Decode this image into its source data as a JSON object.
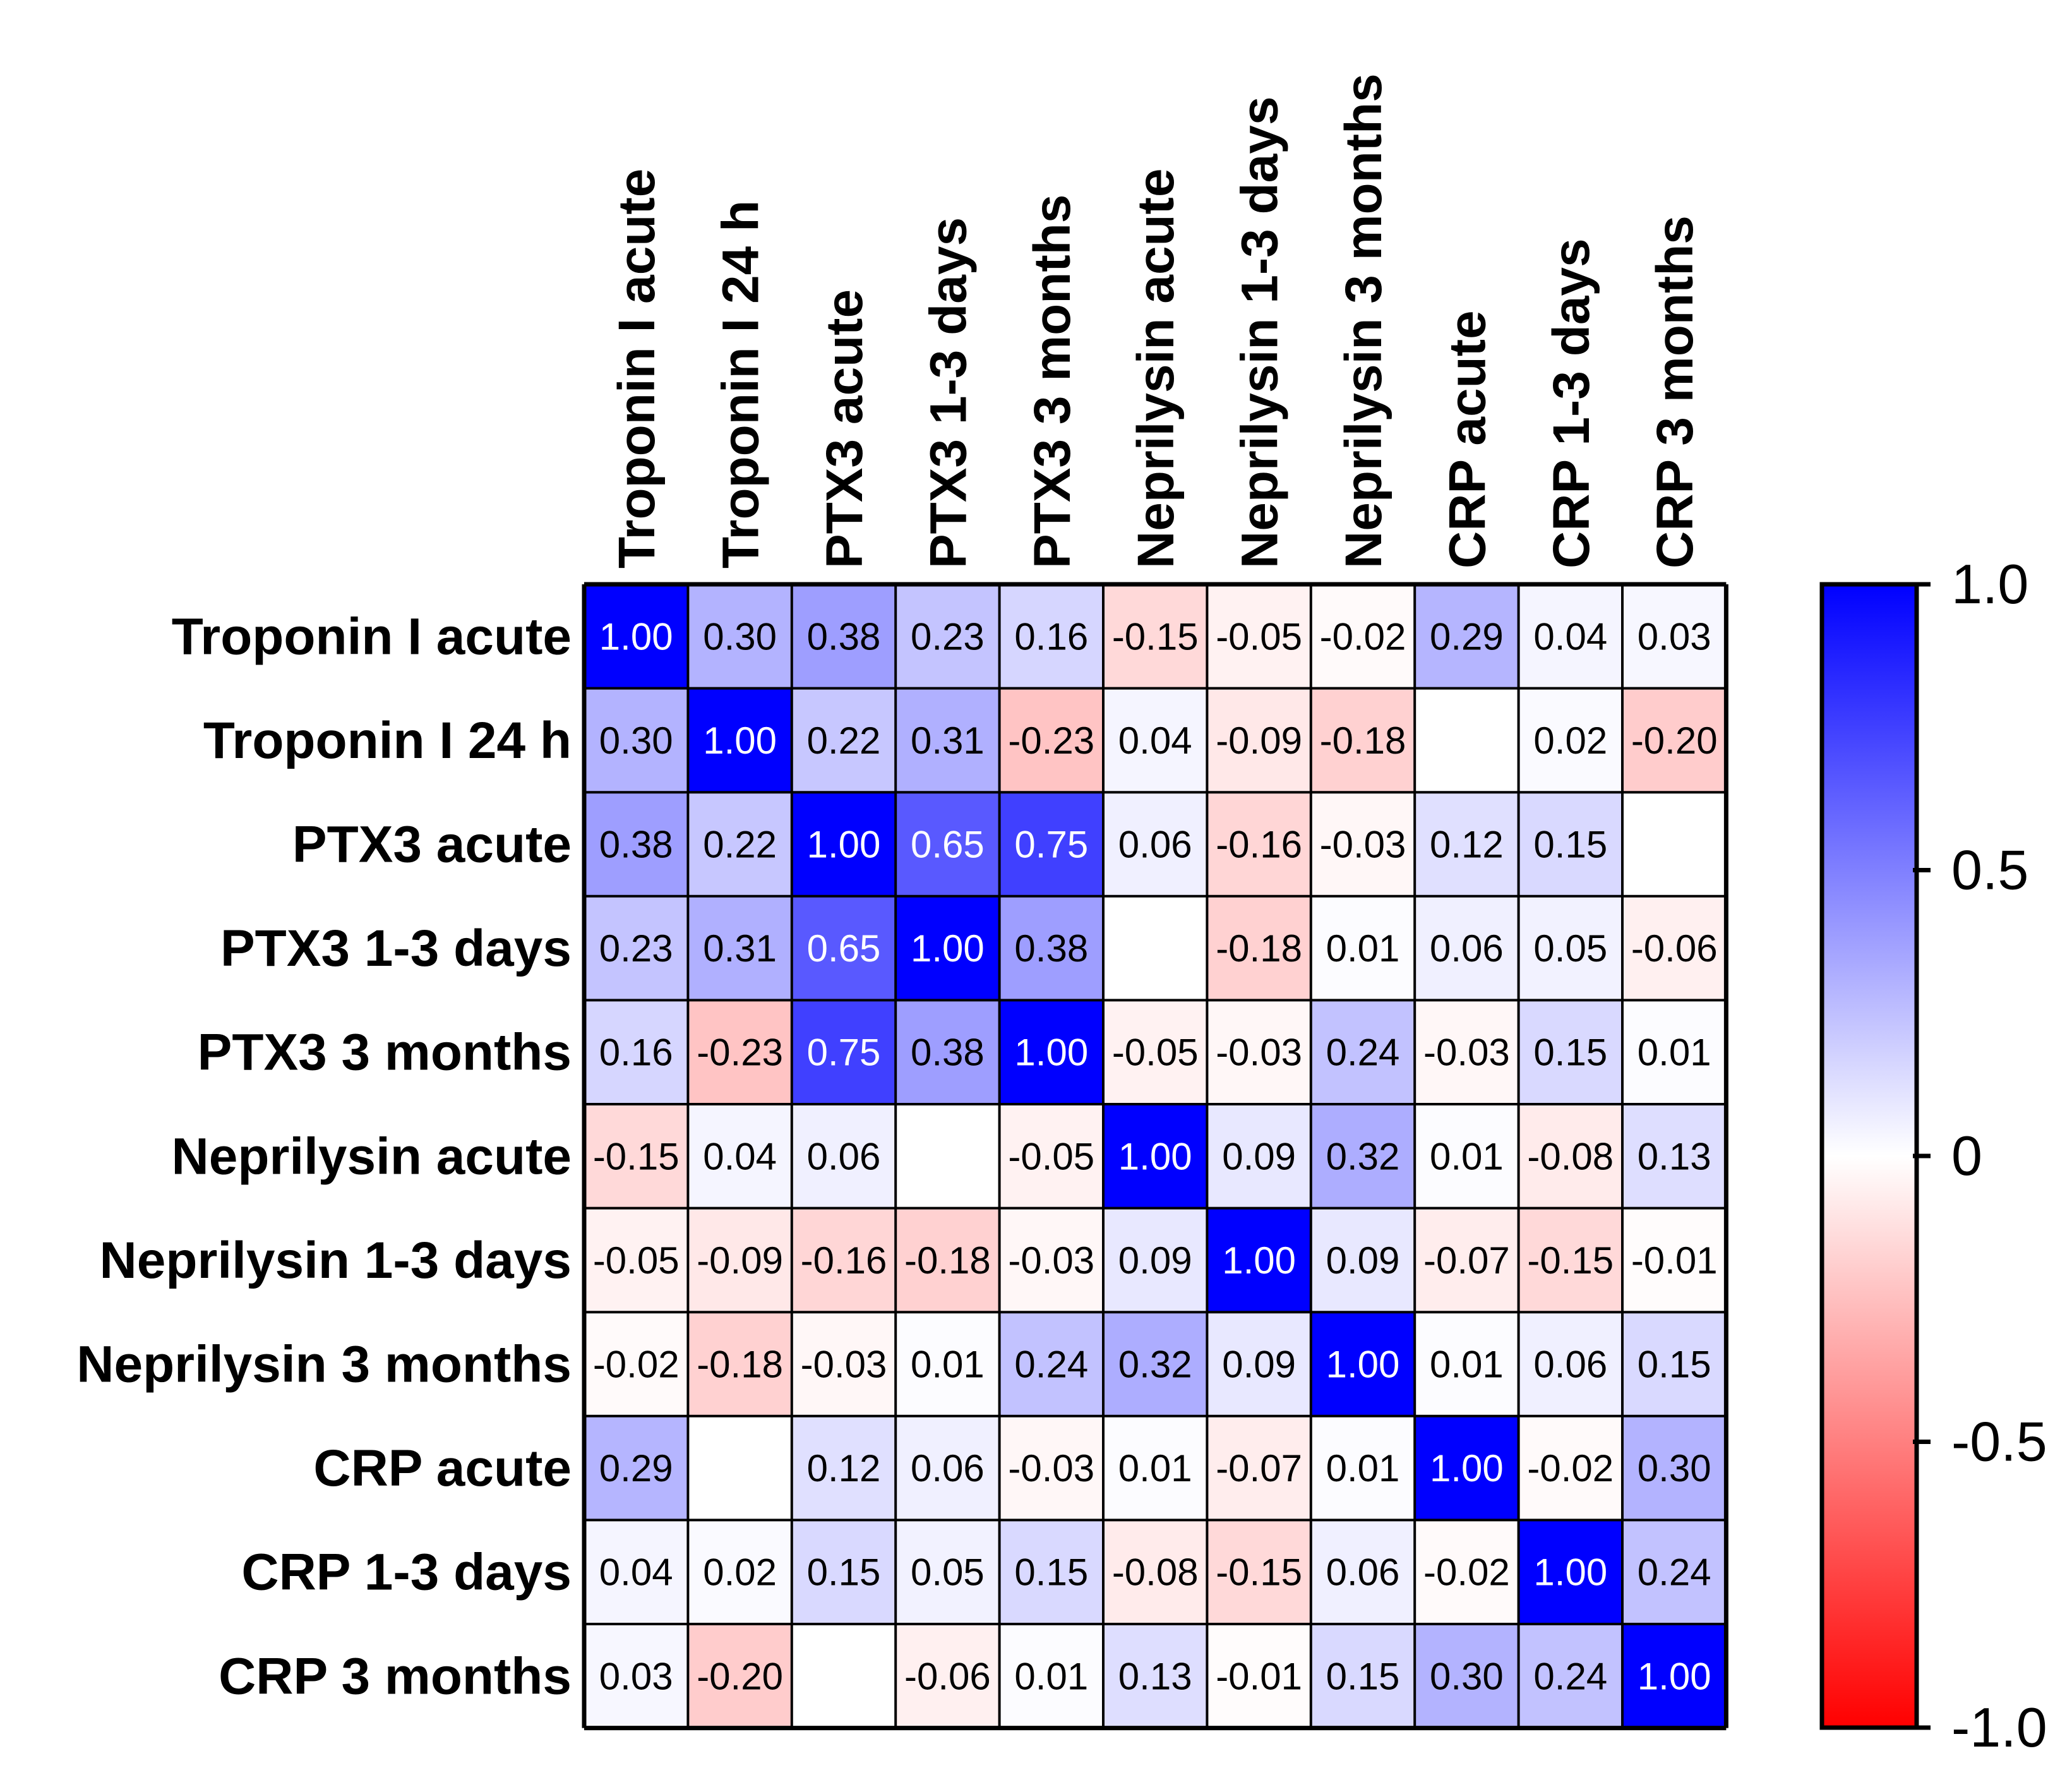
{
  "chart_data": {
    "type": "heatmap",
    "title": "",
    "row_labels": [
      "Troponin I acute",
      "Troponin I 24 h",
      "PTX3 acute",
      "PTX3 1-3 days",
      "PTX3 3 months",
      "Neprilysin acute",
      "Neprilysin 1-3 days",
      "Neprilysin 3 months",
      "CRP acute",
      "CRP 1-3 days",
      "CRP 3 months"
    ],
    "col_labels": [
      "Troponin I acute",
      "Troponin I 24 h",
      "PTX3 acute",
      "PTX3 1-3 days",
      "PTX3 3 months",
      "Neprilysin acute",
      "Neprilysin 1-3 days",
      "Neprilysin 3 months",
      "CRP acute",
      "CRP 1-3 days",
      "CRP 3 months"
    ],
    "values": [
      [
        1.0,
        0.3,
        0.38,
        0.23,
        0.16,
        -0.15,
        -0.05,
        -0.02,
        0.29,
        0.04,
        0.03
      ],
      [
        0.3,
        1.0,
        0.22,
        0.31,
        -0.23,
        0.04,
        -0.09,
        -0.18,
        null,
        0.02,
        -0.2
      ],
      [
        0.38,
        0.22,
        1.0,
        0.65,
        0.75,
        0.06,
        -0.16,
        -0.03,
        0.12,
        0.15,
        null
      ],
      [
        0.23,
        0.31,
        0.65,
        1.0,
        0.38,
        null,
        -0.18,
        0.01,
        0.06,
        0.05,
        -0.06
      ],
      [
        0.16,
        -0.23,
        0.75,
        0.38,
        1.0,
        -0.05,
        -0.03,
        0.24,
        -0.03,
        0.15,
        0.01
      ],
      [
        -0.15,
        0.04,
        0.06,
        null,
        -0.05,
        1.0,
        0.09,
        0.32,
        0.01,
        -0.08,
        0.13
      ],
      [
        -0.05,
        -0.09,
        -0.16,
        -0.18,
        -0.03,
        0.09,
        1.0,
        0.09,
        -0.07,
        -0.15,
        -0.01
      ],
      [
        -0.02,
        -0.18,
        -0.03,
        0.01,
        0.24,
        0.32,
        0.09,
        1.0,
        0.01,
        0.06,
        0.15
      ],
      [
        0.29,
        null,
        0.12,
        0.06,
        -0.03,
        0.01,
        -0.07,
        0.01,
        1.0,
        -0.02,
        0.3
      ],
      [
        0.04,
        0.02,
        0.15,
        0.05,
        0.15,
        -0.08,
        -0.15,
        0.06,
        -0.02,
        1.0,
        0.24
      ],
      [
        0.03,
        -0.2,
        null,
        -0.06,
        0.01,
        0.13,
        -0.01,
        0.15,
        0.3,
        0.24,
        1.0
      ]
    ],
    "value_format_decimals": 2,
    "color_scale": {
      "min": -1.0,
      "max": 1.0,
      "min_color": "#ff0000",
      "mid_color": "#ffffff",
      "max_color": "#0000ff",
      "ticks": [
        1.0,
        0.5,
        0,
        -0.5,
        -1.0
      ],
      "tick_labels": [
        "1.0",
        "0.5",
        "0",
        "-0.5",
        "-1.0"
      ]
    },
    "grid": true,
    "legend": "right"
  },
  "colors": {
    "border": "#000000",
    "text_dark": "#000000",
    "text_light": "#ffffff"
  }
}
